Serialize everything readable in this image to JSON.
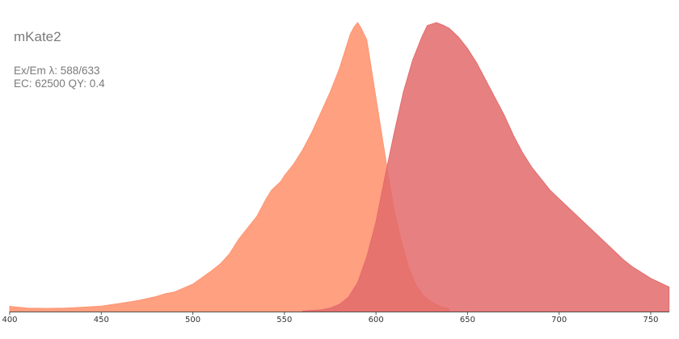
{
  "header": {
    "title": "mKate2",
    "wavelengths": "Ex/Em λ: 588/633",
    "coefficients": "EC: 62500  QY: 0.4"
  },
  "chart_data": {
    "type": "area",
    "title": "mKate2",
    "xlim": [
      400,
      760
    ],
    "ylim": [
      0,
      1
    ],
    "x_ticks": [
      400,
      450,
      500,
      550,
      600,
      650,
      700,
      750
    ],
    "grid": false,
    "legend": "none",
    "series": [
      {
        "color": "#ff9673",
        "opacity": 0.9,
        "points": [
          [
            400,
            0.018
          ],
          [
            410,
            0.012
          ],
          [
            420,
            0.011
          ],
          [
            430,
            0.012
          ],
          [
            440,
            0.015
          ],
          [
            450,
            0.019
          ],
          [
            460,
            0.028
          ],
          [
            470,
            0.038
          ],
          [
            480,
            0.052
          ],
          [
            485,
            0.062
          ],
          [
            490,
            0.068
          ],
          [
            500,
            0.095
          ],
          [
            510,
            0.14
          ],
          [
            515,
            0.165
          ],
          [
            520,
            0.2
          ],
          [
            525,
            0.25
          ],
          [
            530,
            0.29
          ],
          [
            535,
            0.33
          ],
          [
            540,
            0.39
          ],
          [
            543,
            0.42
          ],
          [
            548,
            0.45
          ],
          [
            550,
            0.47
          ],
          [
            555,
            0.51
          ],
          [
            560,
            0.56
          ],
          [
            565,
            0.62
          ],
          [
            570,
            0.69
          ],
          [
            575,
            0.76
          ],
          [
            580,
            0.84
          ],
          [
            583,
            0.9
          ],
          [
            586,
            0.96
          ],
          [
            588,
            0.985
          ],
          [
            590,
            1.0
          ],
          [
            592,
            0.98
          ],
          [
            595,
            0.94
          ],
          [
            597,
            0.86
          ],
          [
            600,
            0.74
          ],
          [
            603,
            0.62
          ],
          [
            606,
            0.5
          ],
          [
            610,
            0.35
          ],
          [
            614,
            0.24
          ],
          [
            618,
            0.15
          ],
          [
            622,
            0.09
          ],
          [
            626,
            0.055
          ],
          [
            630,
            0.035
          ],
          [
            635,
            0.018
          ],
          [
            640,
            0.01
          ]
        ]
      },
      {
        "color": "#e36b6b",
        "opacity": 0.85,
        "points": [
          [
            560,
            0.002
          ],
          [
            570,
            0.006
          ],
          [
            575,
            0.012
          ],
          [
            580,
            0.025
          ],
          [
            585,
            0.05
          ],
          [
            590,
            0.1
          ],
          [
            595,
            0.19
          ],
          [
            600,
            0.31
          ],
          [
            605,
            0.47
          ],
          [
            610,
            0.62
          ],
          [
            615,
            0.76
          ],
          [
            620,
            0.87
          ],
          [
            625,
            0.95
          ],
          [
            628,
            0.99
          ],
          [
            633,
            1.0
          ],
          [
            637,
            0.99
          ],
          [
            640,
            0.98
          ],
          [
            645,
            0.95
          ],
          [
            650,
            0.91
          ],
          [
            655,
            0.86
          ],
          [
            660,
            0.8
          ],
          [
            665,
            0.74
          ],
          [
            670,
            0.68
          ],
          [
            675,
            0.61
          ],
          [
            680,
            0.55
          ],
          [
            685,
            0.5
          ],
          [
            690,
            0.46
          ],
          [
            695,
            0.42
          ],
          [
            700,
            0.39
          ],
          [
            705,
            0.36
          ],
          [
            710,
            0.33
          ],
          [
            715,
            0.3
          ],
          [
            720,
            0.27
          ],
          [
            725,
            0.24
          ],
          [
            730,
            0.21
          ],
          [
            735,
            0.18
          ],
          [
            740,
            0.155
          ],
          [
            745,
            0.135
          ],
          [
            750,
            0.115
          ],
          [
            755,
            0.1
          ],
          [
            760,
            0.085
          ]
        ]
      }
    ]
  }
}
